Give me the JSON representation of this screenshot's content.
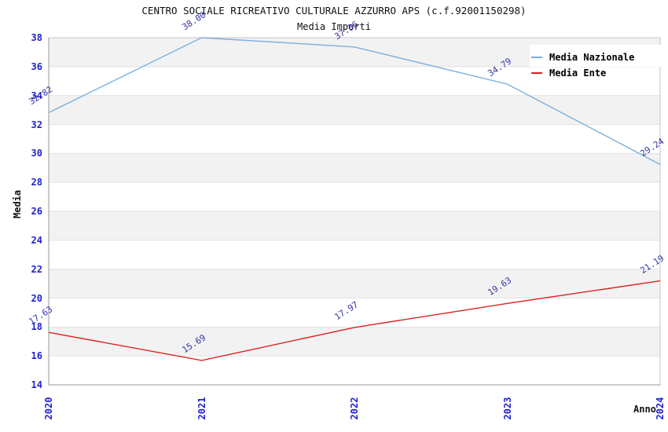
{
  "chart": {
    "title": "CENTRO SOCIALE RICREATIVO CULTURALE AZZURRO APS (c.f.92001150298)",
    "subtitle": "Media Importi",
    "ylabel": "Media",
    "xlabel": "Anno"
  },
  "chart_data": {
    "type": "line",
    "x": [
      2020,
      2021,
      2022,
      2023,
      2024
    ],
    "series": [
      {
        "name": "Media Nazionale",
        "color": "#7aafe0",
        "values": [
          32.82,
          38.0,
          37.36,
          34.79,
          29.24
        ]
      },
      {
        "name": "Media Ente",
        "color": "#dd2222",
        "values": [
          17.63,
          15.69,
          17.97,
          19.63,
          21.19
        ]
      }
    ],
    "title": "Media Importi",
    "xlabel": "Anno",
    "ylabel": "Media",
    "ylim": [
      14,
      38
    ],
    "ytick_step": 2,
    "yticks": [
      14,
      16,
      18,
      20,
      22,
      24,
      26,
      28,
      30,
      32,
      34,
      36,
      38
    ],
    "grid": "horizontal-bands",
    "legend_position": "top-right",
    "data_labels_shown": true,
    "colors": {
      "tick_label": "#2222cc",
      "data_label": "#3333aa",
      "band_gray": "#f2f2f2",
      "band_white": "#ffffff",
      "gridline": "#e2e2e2",
      "border": "#c6c6c6",
      "axis_line": "#9a9a9a"
    }
  }
}
